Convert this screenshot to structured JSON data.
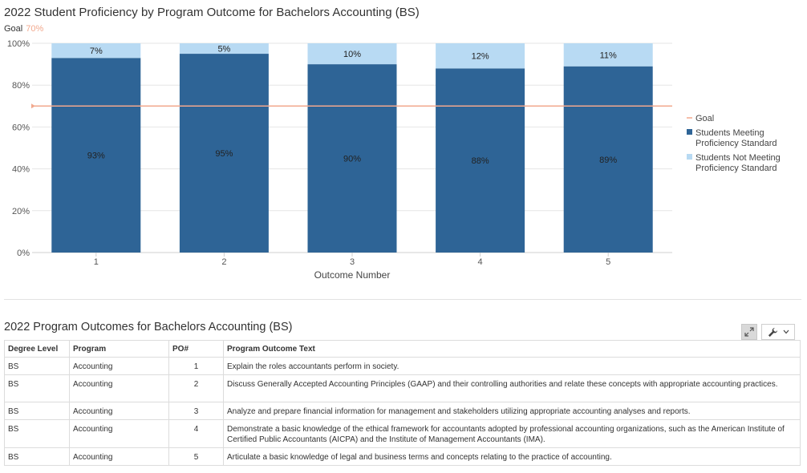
{
  "chart_title": "2022 Student Proficiency by Program Outcome for Bachelors Accounting (BS)",
  "goal_caption": {
    "label": "Goal",
    "value": "70%"
  },
  "chart_data": {
    "type": "bar",
    "stacked": true,
    "title": "2022 Student Proficiency by Program Outcome for Bachelors Accounting (BS)",
    "xlabel": "Outcome Number",
    "ylabel": "",
    "categories": [
      "1",
      "2",
      "3",
      "4",
      "5"
    ],
    "ylim": [
      0,
      100
    ],
    "yticks": [
      "0%",
      "20%",
      "40%",
      "60%",
      "80%",
      "100%"
    ],
    "series": [
      {
        "name": "Students Meeting Proficiency Standard",
        "values": [
          93,
          95,
          90,
          88,
          89
        ],
        "labels": [
          "93%",
          "95%",
          "90%",
          "88%",
          "89%"
        ],
        "color": "#2e6496"
      },
      {
        "name": "Students Not Meeting Proficiency Standard",
        "values": [
          7,
          5,
          10,
          12,
          11
        ],
        "labels": [
          "7%",
          "5%",
          "10%",
          "12%",
          "11%"
        ],
        "color": "#b8daf3"
      }
    ],
    "goal": {
      "name": "Goal",
      "value": 70,
      "color": "#f2a98e"
    },
    "legend": {
      "position": "right",
      "items": [
        {
          "lines": [
            "Goal"
          ],
          "kind": "line",
          "color": "#f2a98e"
        },
        {
          "lines": [
            "Students Meeting",
            "Proficiency Standard"
          ],
          "kind": "box",
          "color": "#2e6496"
        },
        {
          "lines": [
            "Students Not Meeting",
            "Proficiency Standard"
          ],
          "kind": "box",
          "color": "#b8daf3"
        }
      ]
    },
    "grid": true
  },
  "table": {
    "title": "2022 Program Outcomes for Bachelors Accounting (BS)",
    "headers": [
      "Degree Level",
      "Program",
      "PO#",
      "Program Outcome Text"
    ],
    "rows": [
      [
        "BS",
        "Accounting",
        "1",
        "Explain the roles accountants perform in society."
      ],
      [
        "BS",
        "Accounting",
        "2",
        "Discuss Generally Accepted Accounting Principles (GAAP) and their controlling authorities and relate these concepts with appropriate accounting practices."
      ],
      [
        "BS",
        "Accounting",
        "3",
        "Analyze and prepare financial information for management and stakeholders utilizing appropriate accounting analyses and reports."
      ],
      [
        "BS",
        "Accounting",
        "4",
        "Demonstrate a basic knowledge of the ethical framework for accountants adopted by professional accounting organizations, such as the American Institute of Certified Public Accountants (AICPA) and the Institute of Management Accountants (IMA)."
      ],
      [
        "BS",
        "Accounting",
        "5",
        "Articulate a basic knowledge of legal and business terms and concepts relating to the practice of accounting."
      ]
    ]
  },
  "toolbar": {
    "expand_icon": "expand-icon",
    "tools_icon": "wrench-icon",
    "menu_icon": "chevron-down-icon"
  }
}
